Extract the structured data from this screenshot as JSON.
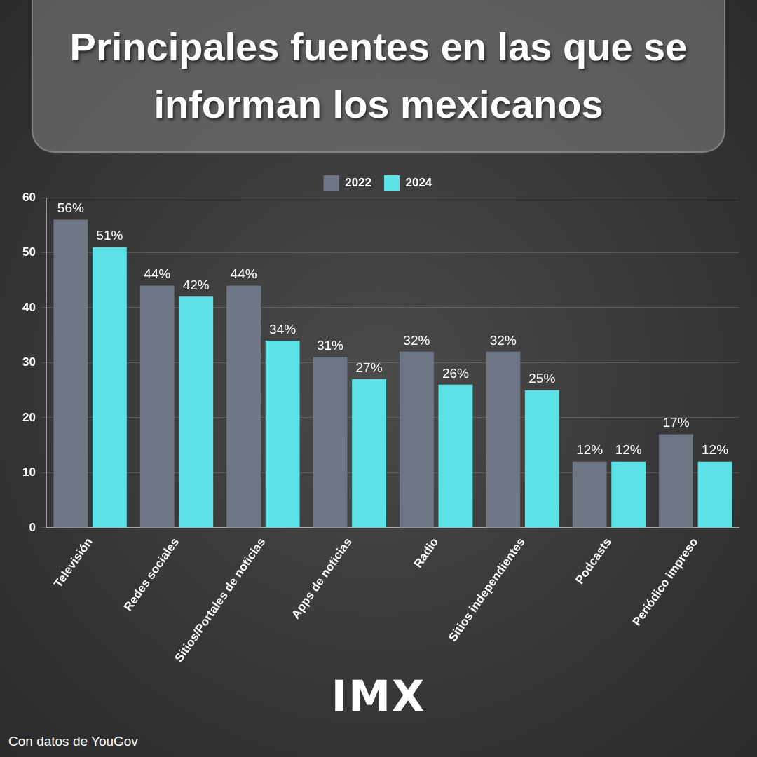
{
  "chart_data": {
    "type": "bar",
    "title": "Principales fuentes en las que se informan los mexicanos",
    "categories": [
      "Televisión",
      "Redes sociales",
      "Sitios/Portales de noticias",
      "Apps de noticias",
      "Radio",
      "Sitios independientes",
      "Podcasts",
      "Periódico impreso"
    ],
    "series": [
      {
        "name": "2022",
        "color": "#6e7585",
        "values": [
          56,
          44,
          44,
          31,
          32,
          32,
          12,
          17
        ],
        "value_labels": [
          "56%",
          "44%",
          "44%",
          "31%",
          "32%",
          "32%",
          "12%",
          "17%"
        ]
      },
      {
        "name": "2024",
        "color": "#5ce1e6",
        "values": [
          51,
          42,
          34,
          27,
          26,
          25,
          12,
          12
        ],
        "value_labels": [
          "51%",
          "42%",
          "34%",
          "27%",
          "26%",
          "25%",
          "12%",
          "12%"
        ]
      }
    ],
    "ylim": [
      0,
      60
    ],
    "yticks": [
      0,
      10,
      20,
      30,
      40,
      50,
      60
    ],
    "grid": true,
    "legend": "top",
    "data_labels": true,
    "annotations": [
      "IMX",
      "Con datos de YouGov"
    ]
  }
}
